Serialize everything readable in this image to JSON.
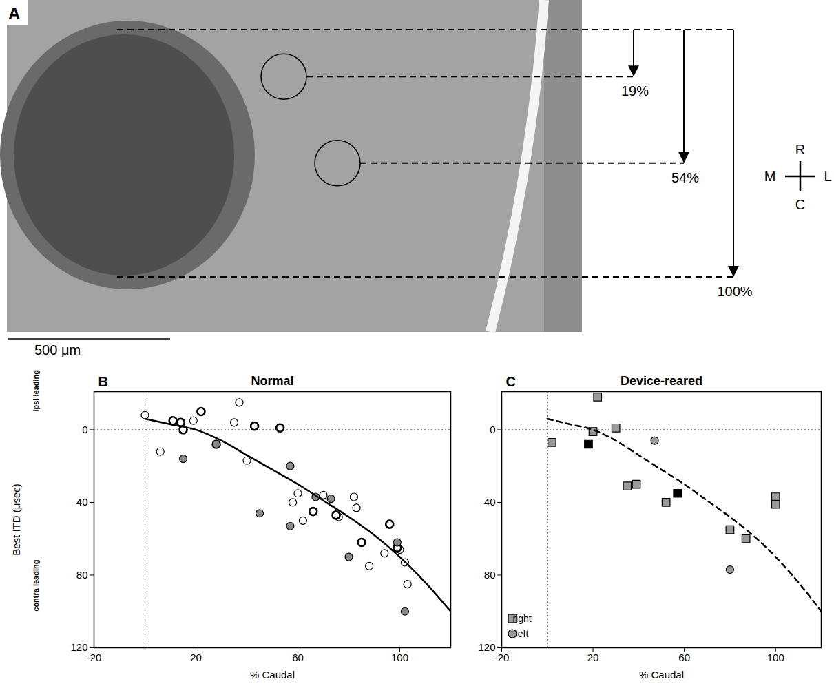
{
  "panel_a": {
    "panel_label": "A",
    "depth_marks": [
      {
        "value": 19,
        "label": "19%"
      },
      {
        "value": 54,
        "label": "54%"
      },
      {
        "value": 100,
        "label": "100%"
      }
    ],
    "scale_bar": {
      "value": 500,
      "label": "500 μm"
    },
    "compass": {
      "rostral": "R",
      "caudal": "C",
      "medial": "M",
      "lateral": "L"
    }
  },
  "chart_data": [
    {
      "type": "scatter",
      "panel_label": "B",
      "title": "Normal",
      "xlabel": "% Caudal",
      "ylabel": "Best ITD (μsec)",
      "annotations": [
        {
          "text": "ipsi leading",
          "y": -10
        },
        {
          "text": "contra leading",
          "y": 100
        }
      ],
      "reference_lines": [
        {
          "axis": "x",
          "value": 0
        },
        {
          "axis": "y",
          "value": 0
        }
      ],
      "xlim": [
        -20,
        120
      ],
      "xticks": [
        -20,
        20,
        60,
        100
      ],
      "ylim": [
        120,
        -21
      ],
      "yticks": [
        0,
        40,
        80,
        120
      ],
      "grid": false,
      "series": [
        {
          "type": "scatter",
          "marker": "open_circle",
          "color": "#000000",
          "x": [
            0,
            6,
            19,
            37,
            35,
            40,
            58,
            60,
            62,
            70,
            82,
            83,
            88,
            94,
            100,
            102,
            103,
            76
          ],
          "values": [
            -8,
            12,
            -5,
            -15,
            -4,
            17,
            40,
            35,
            50,
            36,
            37,
            43,
            75,
            68,
            66,
            73,
            85,
            48
          ]
        },
        {
          "type": "scatter",
          "marker": "bold_open_circle",
          "color": "#000000",
          "x": [
            11,
            14,
            15,
            22,
            28,
            43,
            53,
            66,
            75,
            85,
            96,
            99
          ],
          "values": [
            -5,
            -4,
            0,
            -10,
            8,
            -2,
            -1,
            45,
            47,
            62,
            52,
            65
          ]
        },
        {
          "type": "scatter",
          "marker": "circle",
          "color": "#8a8a8a",
          "x": [
            15,
            28,
            45,
            57,
            57,
            67,
            73,
            80,
            99,
            102
          ],
          "values": [
            16,
            8,
            46,
            20,
            53,
            37,
            38,
            70,
            62,
            100
          ]
        },
        {
          "type": "line",
          "line_style": "solid",
          "color": "#000000",
          "x": [
            0,
            10,
            20,
            30,
            40,
            50,
            60,
            70,
            80,
            90,
            100,
            110,
            120
          ],
          "values": [
            -6,
            -3,
            0,
            6,
            14,
            22,
            30,
            39,
            48,
            58,
            70,
            84,
            100
          ]
        }
      ]
    },
    {
      "type": "scatter",
      "panel_label": "C",
      "title": "Device-reared",
      "xlabel": "% Caudal",
      "reference_lines": [
        {
          "axis": "x",
          "value": 0
        },
        {
          "axis": "y",
          "value": 0
        }
      ],
      "xlim": [
        -20,
        120
      ],
      "xticks": [
        -20,
        20,
        60,
        100
      ],
      "ylim": [
        120,
        -21
      ],
      "yticks": [
        0,
        40,
        80,
        120
      ],
      "grid": false,
      "legend": "bottom-left",
      "series": [
        {
          "name": "right",
          "type": "scatter",
          "marker": "square",
          "color": "#9a9a9a",
          "x": [
            2,
            20,
            22,
            30,
            35,
            39,
            52,
            80,
            87,
            100,
            100
          ],
          "values": [
            7,
            1,
            -18,
            -1,
            31,
            30,
            40,
            55,
            60,
            37,
            41
          ]
        },
        {
          "name": "left",
          "type": "scatter",
          "marker": "circle",
          "color": "#9a9a9a",
          "x": [
            47,
            80
          ],
          "values": [
            6,
            77
          ]
        },
        {
          "type": "scatter",
          "marker": "square",
          "color": "#000000",
          "x": [
            18,
            57
          ],
          "values": [
            8,
            35
          ]
        },
        {
          "type": "line",
          "line_style": "dashed",
          "color": "#000000",
          "x": [
            0,
            10,
            20,
            30,
            40,
            50,
            60,
            70,
            80,
            90,
            100,
            110,
            120
          ],
          "values": [
            -6,
            -3,
            0,
            6,
            14,
            22,
            30,
            39,
            48,
            58,
            70,
            84,
            100
          ]
        }
      ]
    }
  ]
}
